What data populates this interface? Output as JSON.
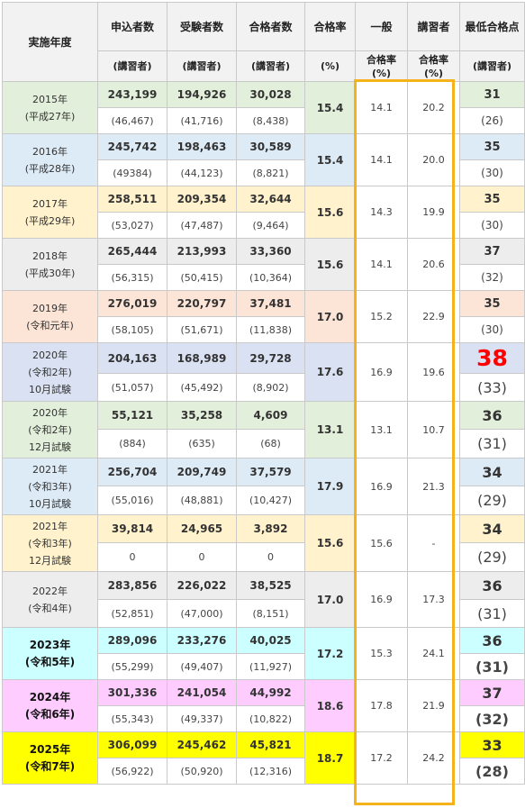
{
  "headers": {
    "year": "実施年度",
    "applicants": "申込者数",
    "examinees": "受験者数",
    "passers": "合格者数",
    "pass_rate": "合格率",
    "general": "一般",
    "lecturer": "講習者",
    "min_score": "最低合格点",
    "sub_lecturer": "(講習者)",
    "sub_percent": "(%)",
    "sub_general_l1": "合格率",
    "sub_general_l2": "(%)",
    "sub_lecturer_l1": "合格率",
    "sub_lecturer_l2": "(%)"
  },
  "colors": {
    "highlight_border": "#f5b21b",
    "big_min_score": "#ff0000"
  },
  "rows": [
    {
      "year_lines": [
        "2015年",
        "(平成27年)"
      ],
      "bg": "#e2efda",
      "applicants": "243,199",
      "examinees": "194,926",
      "passers": "30,028",
      "applicants_sub": "(46,467)",
      "examinees_sub": "(41,716)",
      "passers_sub": "(8,438)",
      "rate": "15.4",
      "general": "14.1",
      "lecturer": "20.2",
      "min": "31",
      "min_sub": "(26)",
      "style": "normal"
    },
    {
      "year_lines": [
        "2016年",
        "(平成28年)"
      ],
      "bg": "#ddebf7",
      "applicants": "245,742",
      "examinees": "198,463",
      "passers": "30,589",
      "applicants_sub": "(49384)",
      "examinees_sub": "(44,123)",
      "passers_sub": "(8,821)",
      "rate": "15.4",
      "general": "14.1",
      "lecturer": "20.0",
      "min": "35",
      "min_sub": "(30)",
      "style": "normal"
    },
    {
      "year_lines": [
        "2017年",
        "(平成29年)"
      ],
      "bg": "#fff2cc",
      "applicants": "258,511",
      "examinees": "209,354",
      "passers": "32,644",
      "applicants_sub": "(53,027)",
      "examinees_sub": "(47,487)",
      "passers_sub": "(9,464)",
      "rate": "15.6",
      "general": "14.3",
      "lecturer": "19.9",
      "min": "35",
      "min_sub": "(30)",
      "style": "normal"
    },
    {
      "year_lines": [
        "2018年",
        "(平成30年)"
      ],
      "bg": "#ededed",
      "applicants": "265,444",
      "examinees": "213,993",
      "passers": "33,360",
      "applicants_sub": "(56,315)",
      "examinees_sub": "(50,415)",
      "passers_sub": "(10,364)",
      "rate": "15.6",
      "general": "14.1",
      "lecturer": "20.6",
      "min": "37",
      "min_sub": "(32)",
      "style": "normal"
    },
    {
      "year_lines": [
        "2019年",
        "(令和元年)"
      ],
      "bg": "#fce4d6",
      "applicants": "276,019",
      "examinees": "220,797",
      "passers": "37,481",
      "applicants_sub": "(58,105)",
      "examinees_sub": "(51,671)",
      "passers_sub": "(11,838)",
      "rate": "17.0",
      "general": "15.2",
      "lecturer": "22.9",
      "min": "35",
      "min_sub": "(30)",
      "style": "normal"
    },
    {
      "year_lines": [
        "2020年",
        "(令和2年)",
        "10月試験"
      ],
      "bg": "#d9e1f2",
      "applicants": "204,163",
      "examinees": "168,989",
      "passers": "29,728",
      "applicants_sub": "(51,057)",
      "examinees_sub": "(45,492)",
      "passers_sub": "(8,902)",
      "rate": "17.6",
      "general": "16.9",
      "lecturer": "19.6",
      "min": "38",
      "min_sub": "(33)",
      "style": "huge"
    },
    {
      "year_lines": [
        "2020年",
        "(令和2年)",
        "12月試験"
      ],
      "bg": "#e2efda",
      "applicants": "55,121",
      "examinees": "35,258",
      "passers": "4,609",
      "applicants_sub": "(884)",
      "examinees_sub": "(635)",
      "passers_sub": "(68)",
      "rate": "13.1",
      "general": "13.1",
      "lecturer": "10.7",
      "min": "36",
      "min_sub": "(31)",
      "style": "big"
    },
    {
      "year_lines": [
        "2021年",
        "(令和3年)",
        "10月試験"
      ],
      "bg": "#ddebf7",
      "applicants": "256,704",
      "examinees": "209,749",
      "passers": "37,579",
      "applicants_sub": "(55,016)",
      "examinees_sub": "(48,881)",
      "passers_sub": "(10,427)",
      "rate": "17.9",
      "general": "16.9",
      "lecturer": "21.3",
      "min": "34",
      "min_sub": "(29)",
      "style": "big"
    },
    {
      "year_lines": [
        "2021年",
        "(令和3年)",
        "12月試験"
      ],
      "bg": "#fff2cc",
      "applicants": "39,814",
      "examinees": "24,965",
      "passers": "3,892",
      "applicants_sub": "0",
      "examinees_sub": "0",
      "passers_sub": "0",
      "rate": "15.6",
      "general": "15.6",
      "lecturer": "-",
      "min": "34",
      "min_sub": "(29)",
      "style": "big"
    },
    {
      "year_lines": [
        "2022年",
        "(令和4年)"
      ],
      "bg": "#ededed",
      "applicants": "283,856",
      "examinees": "226,022",
      "passers": "38,525",
      "applicants_sub": "(52,851)",
      "examinees_sub": "(47,000)",
      "passers_sub": "(8,151)",
      "rate": "17.0",
      "general": "16.9",
      "lecturer": "17.3",
      "min": "36",
      "min_sub": "(31)",
      "style": "big"
    },
    {
      "year_lines": [
        "2023年",
        "(令和5年)"
      ],
      "bg": "#ccffff",
      "applicants": "289,096",
      "examinees": "233,276",
      "passers": "40,025",
      "applicants_sub": "(55,299)",
      "examinees_sub": "(49,407)",
      "passers_sub": "(11,927)",
      "rate": "17.2",
      "general": "15.3",
      "lecturer": "24.1",
      "min": "36",
      "min_sub": "(31)",
      "style": "bigbold"
    },
    {
      "year_lines": [
        "2024年",
        "(令和6年)"
      ],
      "bg": "#ffccff",
      "applicants": "301,336",
      "examinees": "241,054",
      "passers": "44,992",
      "applicants_sub": "(55,343)",
      "examinees_sub": "(49,337)",
      "passers_sub": "(10,822)",
      "rate": "18.6",
      "general": "17.8",
      "lecturer": "21.9",
      "min": "37",
      "min_sub": "(32)",
      "style": "bigbold"
    },
    {
      "year_lines": [
        "2025年",
        "(令和7年)"
      ],
      "bg": "#ffff00",
      "applicants": "306,099",
      "examinees": "245,462",
      "passers": "45,821",
      "applicants_sub": "(56,922)",
      "examinees_sub": "(50,920)",
      "passers_sub": "(12,316)",
      "rate": "18.7",
      "general": "17.2",
      "lecturer": "24.2",
      "min": "33",
      "min_sub": "(28)",
      "style": "bigbold"
    }
  ]
}
